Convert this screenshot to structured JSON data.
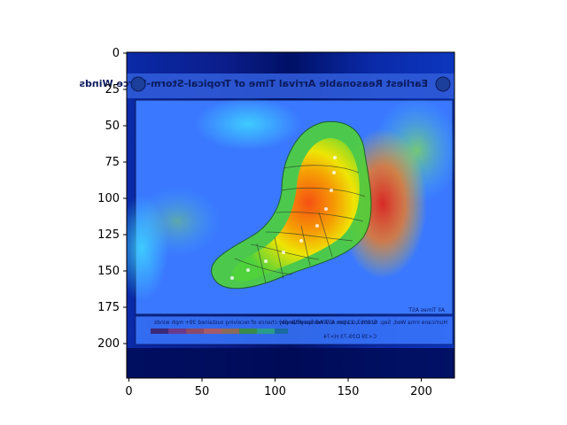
{
  "figure": {
    "x_ticks": [
      "0",
      "50",
      "100",
      "150",
      "200"
    ],
    "y_ticks": [
      "0",
      "25",
      "50",
      "75",
      "100",
      "125",
      "150",
      "175",
      "200"
    ]
  },
  "map": {
    "title": "Earliest Reasonable Arrival Time of Tropical-Storm-Force Winds",
    "times_label": "All Times AST",
    "legend_caption": "Five-day chance of receiving sustained 39+ mph winds",
    "storm_info": "Storm Location & Wind Speed (mph)",
    "storm_legend": "C<39 D39-73 H>74",
    "advisory": "Hurricane Irma Wed, Sep. 6, 2017, 11 pm AST Advisory 32"
  },
  "colors": {
    "background_dark": "#00116e",
    "panel_blue": "#3a78ff",
    "plume_green": "#4fd23a",
    "plume_yellow": "#f7e600",
    "plume_orange": "#ff8a00",
    "plume_red": "#e0251b"
  }
}
